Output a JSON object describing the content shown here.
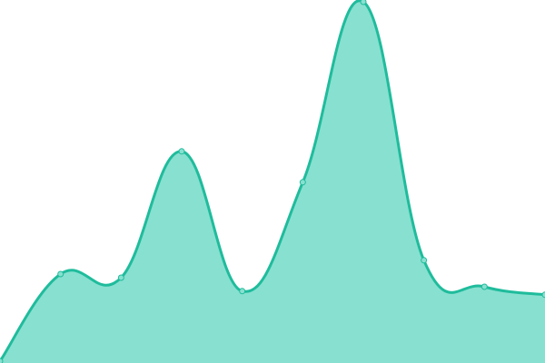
{
  "chart_data": {
    "type": "area",
    "title": "",
    "xlabel": "",
    "ylabel": "",
    "x": [
      0,
      1,
      2,
      3,
      4,
      5,
      6,
      7,
      8,
      9
    ],
    "series": [
      {
        "values": [
          0.5,
          24.5,
          23.5,
          58.3,
          19.8,
          49.8,
          99.5,
          28.3,
          21,
          18.8
        ]
      }
    ],
    "ylim": [
      0,
      100
    ],
    "grid": false,
    "axes_visible": false,
    "colors": {
      "fill": "#88e0d0",
      "line": "#1fbc9c",
      "marker_fill": "#88e0d0"
    }
  }
}
